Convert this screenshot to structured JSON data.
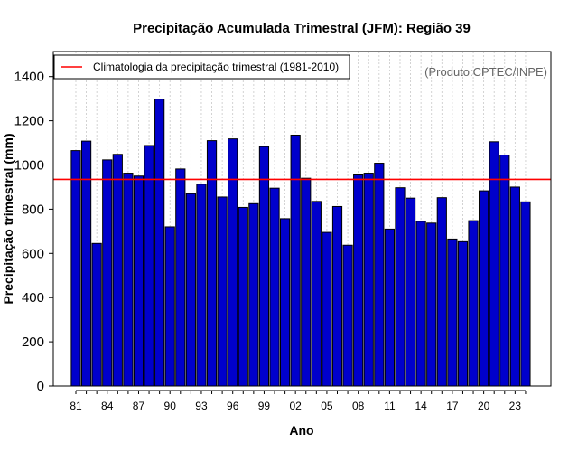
{
  "colors": {
    "bar_fill": "#0000cc",
    "bar_stroke": "#000000",
    "climatology_line": "#ff0000",
    "grid": "#c8c8c8",
    "credit_text": "#666666"
  },
  "chart_data": {
    "type": "bar",
    "title": "Precipitação Acumulada Trimestral (JFM): Região 39",
    "xlabel": "Ano",
    "ylabel": "Precipitação trimestral (mm)",
    "credit": "(Produto:CPTEC/INPE)",
    "ylim": [
      0,
      1500
    ],
    "yticks": [
      0,
      200,
      400,
      600,
      800,
      1000,
      1200,
      1400
    ],
    "years": [
      1981,
      1982,
      1983,
      1984,
      1985,
      1986,
      1987,
      1988,
      1989,
      1990,
      1991,
      1992,
      1993,
      1994,
      1995,
      1996,
      1997,
      1998,
      1999,
      2000,
      2001,
      2002,
      2003,
      2004,
      2005,
      2006,
      2007,
      2008,
      2009,
      2010,
      2011,
      2012,
      2013,
      2014,
      2015,
      2016,
      2017,
      2018,
      2019,
      2020,
      2021,
      2022,
      2023,
      2024
    ],
    "xtick_labels": [
      "81",
      "84",
      "87",
      "90",
      "93",
      "96",
      "99",
      "02",
      "05",
      "08",
      "11",
      "14",
      "17",
      "20",
      "23"
    ],
    "xtick_every": 3,
    "values": [
      1065,
      1108,
      645,
      1023,
      1048,
      963,
      950,
      1088,
      1298,
      720,
      982,
      870,
      913,
      1110,
      855,
      1118,
      808,
      825,
      1083,
      895,
      757,
      1135,
      940,
      835,
      695,
      812,
      637,
      955,
      963,
      1008,
      710,
      897,
      850,
      745,
      737,
      852,
      665,
      653,
      748,
      883,
      1105,
      1045,
      900,
      833
    ],
    "climatology": {
      "label": "Climatologia da precipitação trimestral (1981-2010)",
      "value": 935,
      "legend_position": "top-left"
    }
  }
}
